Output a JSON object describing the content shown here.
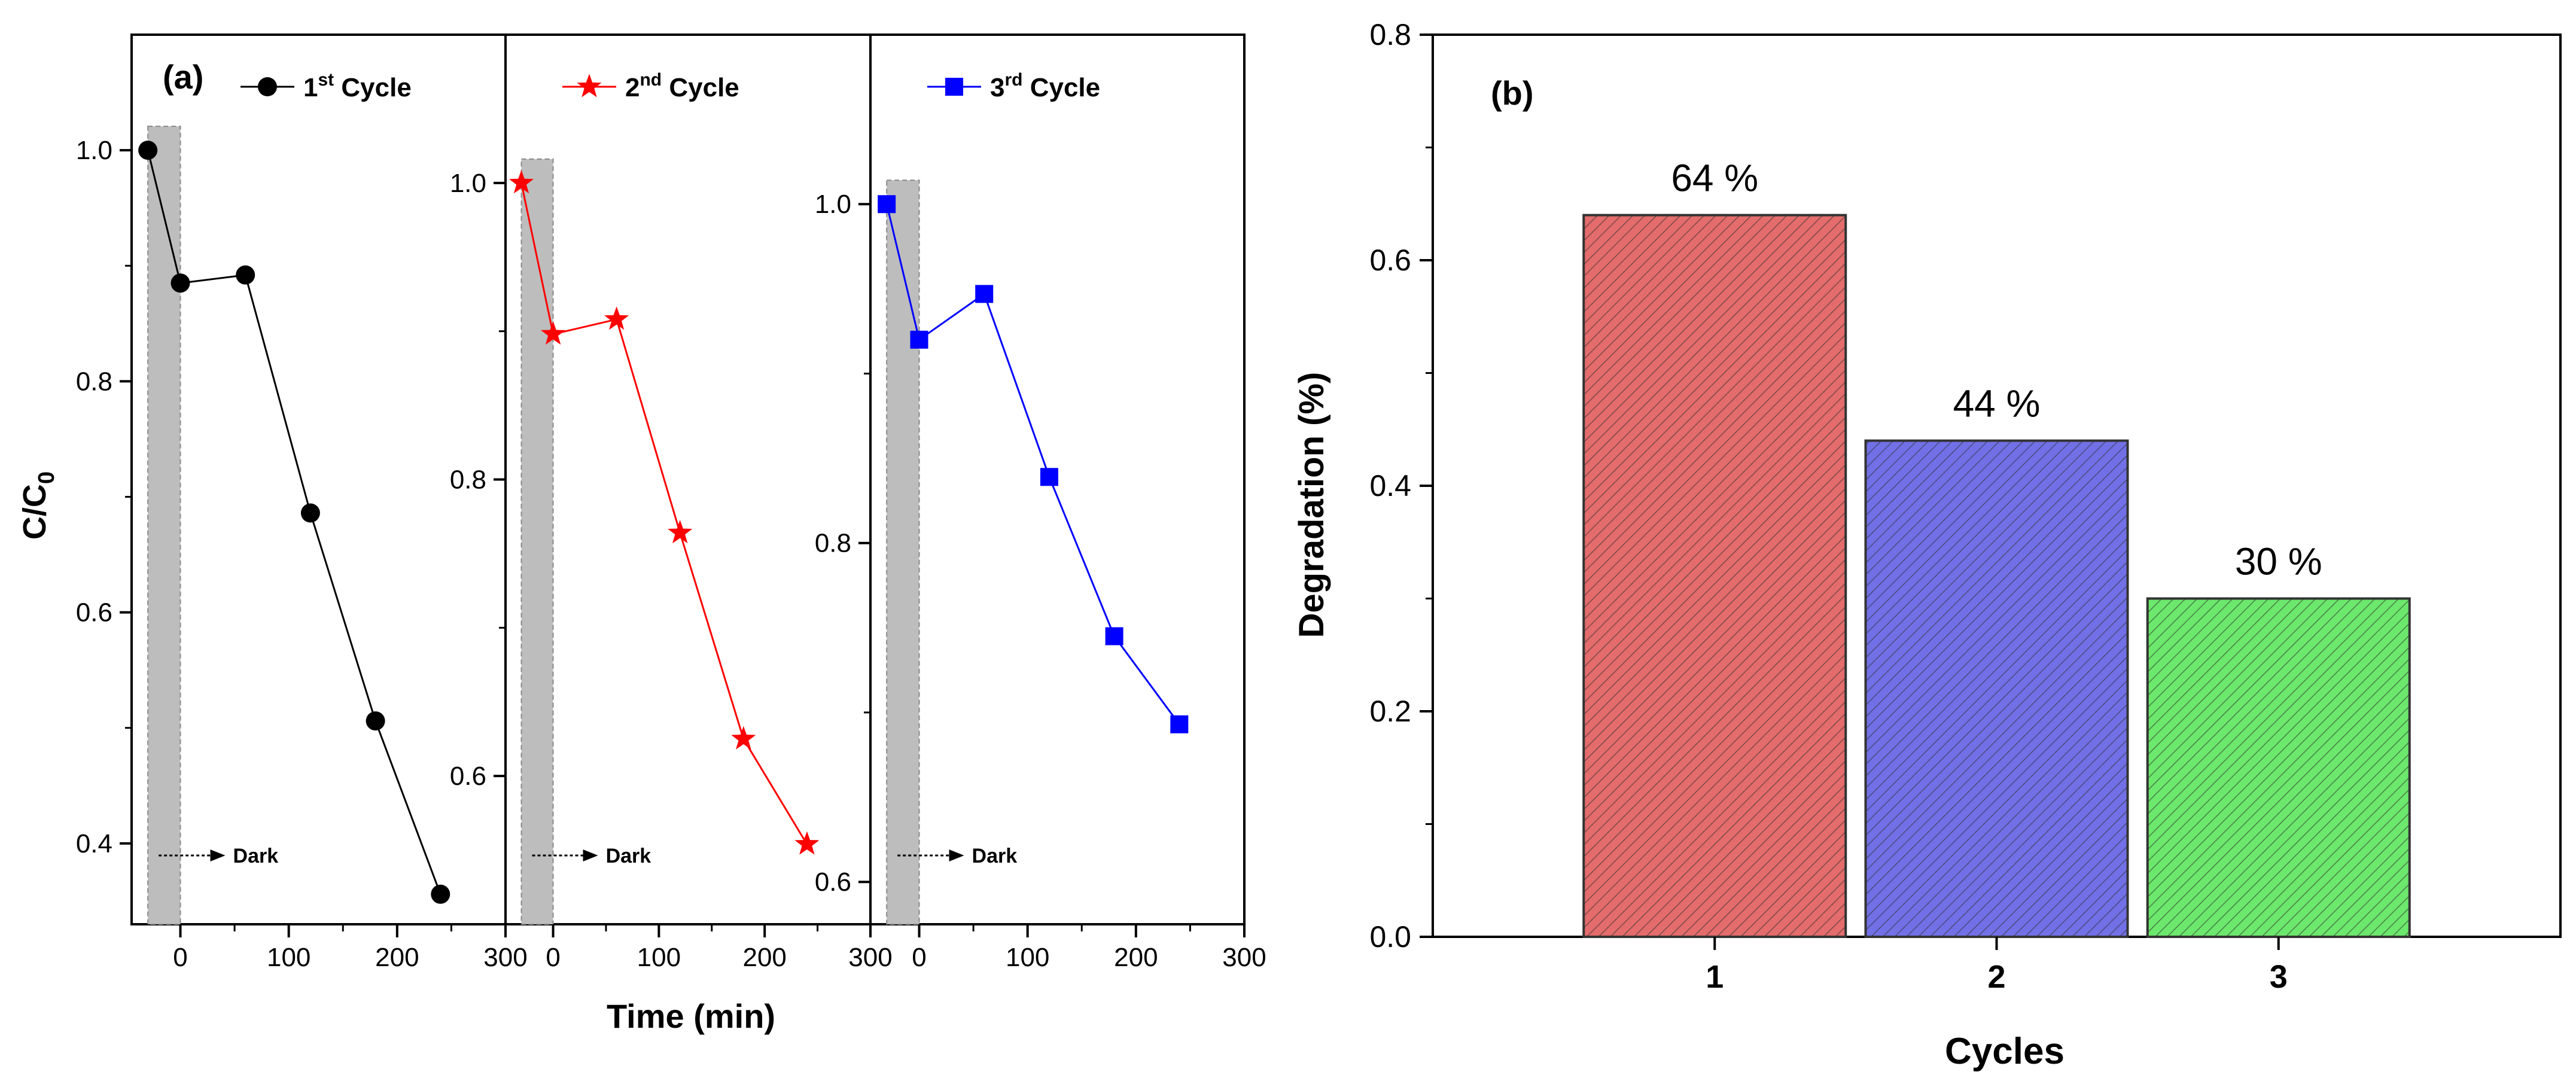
{
  "chart_data": [
    {
      "type": "line",
      "panel_label": "(a)",
      "xlabel": "Time (min)",
      "ylabel_main": "C/C",
      "ylabel_sub": "0",
      "dark_label": "Dark",
      "dark_region": [
        -30,
        0
      ],
      "subplots": [
        {
          "series_name": "1st Cycle",
          "legend_num": "1",
          "legend_sup": "st",
          "legend_rest": " Cycle",
          "color": "#000000",
          "marker": "circle",
          "x": [
            -30,
            0,
            60,
            120,
            180,
            240
          ],
          "y": [
            1.0,
            0.885,
            0.892,
            0.686,
            0.506,
            0.356
          ],
          "ylim": [
            0.33,
            1.1
          ],
          "yticks": [
            0.4,
            0.6,
            0.8,
            1.0
          ],
          "xlim": [
            -45,
            300
          ],
          "xticks": [
            0,
            100,
            200,
            300
          ],
          "minor_x": [
            -50,
            50,
            150,
            250
          ],
          "minor_y": [
            0.5,
            0.7,
            0.9
          ]
        },
        {
          "series_name": "2nd Cycle",
          "legend_num": "2",
          "legend_sup": "nd",
          "legend_rest": " Cycle",
          "color": "#ff0000",
          "marker": "star",
          "x": [
            -30,
            0,
            60,
            120,
            180,
            240
          ],
          "y": [
            1.0,
            0.898,
            0.908,
            0.764,
            0.625,
            0.554
          ],
          "ylim": [
            0.5,
            1.1
          ],
          "yticks": [
            0.6,
            0.8,
            1.0
          ],
          "xlim": [
            -45,
            300
          ],
          "xticks": [
            0,
            100,
            200,
            300
          ],
          "minor_x": [
            -50,
            50,
            150,
            250
          ],
          "minor_y": [
            0.7,
            0.9
          ]
        },
        {
          "series_name": "3rd Cycle",
          "legend_num": "3",
          "legend_sup": "rd",
          "legend_rest": " Cycle",
          "color": "#0000ff",
          "marker": "square",
          "x": [
            -30,
            0,
            60,
            120,
            180,
            240
          ],
          "y": [
            1.0,
            0.92,
            0.947,
            0.839,
            0.745,
            0.693
          ],
          "ylim": [
            0.575,
            1.1
          ],
          "yticks": [
            0.6,
            0.8,
            1.0
          ],
          "xlim": [
            -45,
            300
          ],
          "xticks": [
            0,
            100,
            200,
            300
          ],
          "minor_x": [
            -50,
            50,
            150,
            250
          ],
          "minor_y": [
            0.7,
            0.9
          ]
        }
      ]
    },
    {
      "type": "bar",
      "panel_label": "(b)",
      "categories": [
        "1",
        "2",
        "3"
      ],
      "values": [
        0.64,
        0.44,
        0.3
      ],
      "data_labels": [
        "64 %",
        "44 %",
        "30 %"
      ],
      "colors": [
        "#e46c6c",
        "#7270e6",
        "#6ce86c"
      ],
      "xlabel": "Cycles",
      "ylabel": "Degradation (%)",
      "ylim": [
        0,
        0.8
      ],
      "yticks": [
        0.0,
        0.2,
        0.4,
        0.6,
        0.8
      ],
      "minor_y": [
        0.1,
        0.3,
        0.5,
        0.7
      ]
    }
  ]
}
